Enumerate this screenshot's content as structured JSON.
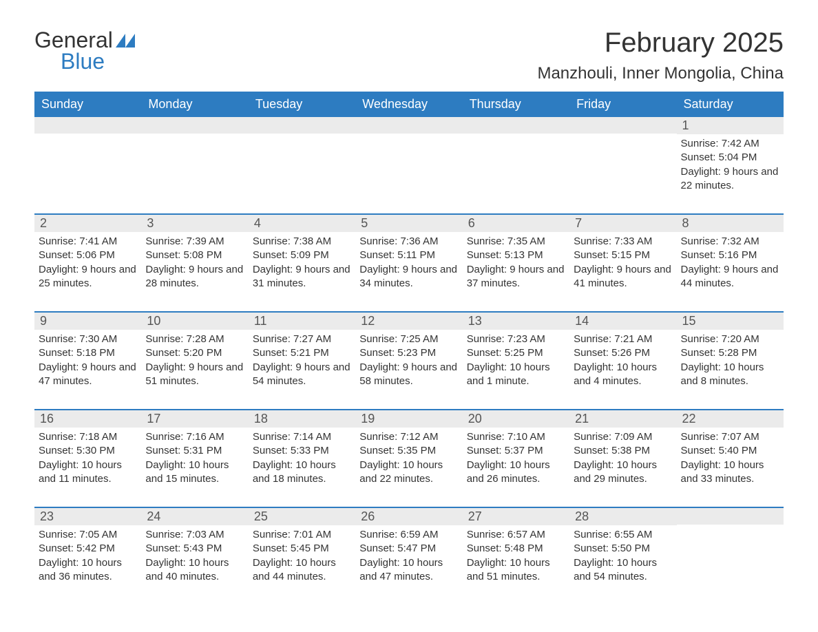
{
  "brand": {
    "text1": "General",
    "text2": "Blue",
    "color_general": "#333333",
    "color_blue": "#2d7cc1"
  },
  "title": "February 2025",
  "location": "Manzhouli, Inner Mongolia, China",
  "colors": {
    "header_bg": "#2d7cc1",
    "header_text": "#ffffff",
    "daynum_bg": "#ebebeb",
    "daynum_text": "#555555",
    "body_text": "#333333",
    "row_border": "#2d7cc1"
  },
  "day_headers": [
    "Sunday",
    "Monday",
    "Tuesday",
    "Wednesday",
    "Thursday",
    "Friday",
    "Saturday"
  ],
  "weeks": [
    [
      {
        "n": "",
        "sunrise": "",
        "sunset": "",
        "daylight": ""
      },
      {
        "n": "",
        "sunrise": "",
        "sunset": "",
        "daylight": ""
      },
      {
        "n": "",
        "sunrise": "",
        "sunset": "",
        "daylight": ""
      },
      {
        "n": "",
        "sunrise": "",
        "sunset": "",
        "daylight": ""
      },
      {
        "n": "",
        "sunrise": "",
        "sunset": "",
        "daylight": ""
      },
      {
        "n": "",
        "sunrise": "",
        "sunset": "",
        "daylight": ""
      },
      {
        "n": "1",
        "sunrise": "Sunrise: 7:42 AM",
        "sunset": "Sunset: 5:04 PM",
        "daylight": "Daylight: 9 hours and 22 minutes."
      }
    ],
    [
      {
        "n": "2",
        "sunrise": "Sunrise: 7:41 AM",
        "sunset": "Sunset: 5:06 PM",
        "daylight": "Daylight: 9 hours and 25 minutes."
      },
      {
        "n": "3",
        "sunrise": "Sunrise: 7:39 AM",
        "sunset": "Sunset: 5:08 PM",
        "daylight": "Daylight: 9 hours and 28 minutes."
      },
      {
        "n": "4",
        "sunrise": "Sunrise: 7:38 AM",
        "sunset": "Sunset: 5:09 PM",
        "daylight": "Daylight: 9 hours and 31 minutes."
      },
      {
        "n": "5",
        "sunrise": "Sunrise: 7:36 AM",
        "sunset": "Sunset: 5:11 PM",
        "daylight": "Daylight: 9 hours and 34 minutes."
      },
      {
        "n": "6",
        "sunrise": "Sunrise: 7:35 AM",
        "sunset": "Sunset: 5:13 PM",
        "daylight": "Daylight: 9 hours and 37 minutes."
      },
      {
        "n": "7",
        "sunrise": "Sunrise: 7:33 AM",
        "sunset": "Sunset: 5:15 PM",
        "daylight": "Daylight: 9 hours and 41 minutes."
      },
      {
        "n": "8",
        "sunrise": "Sunrise: 7:32 AM",
        "sunset": "Sunset: 5:16 PM",
        "daylight": "Daylight: 9 hours and 44 minutes."
      }
    ],
    [
      {
        "n": "9",
        "sunrise": "Sunrise: 7:30 AM",
        "sunset": "Sunset: 5:18 PM",
        "daylight": "Daylight: 9 hours and 47 minutes."
      },
      {
        "n": "10",
        "sunrise": "Sunrise: 7:28 AM",
        "sunset": "Sunset: 5:20 PM",
        "daylight": "Daylight: 9 hours and 51 minutes."
      },
      {
        "n": "11",
        "sunrise": "Sunrise: 7:27 AM",
        "sunset": "Sunset: 5:21 PM",
        "daylight": "Daylight: 9 hours and 54 minutes."
      },
      {
        "n": "12",
        "sunrise": "Sunrise: 7:25 AM",
        "sunset": "Sunset: 5:23 PM",
        "daylight": "Daylight: 9 hours and 58 minutes."
      },
      {
        "n": "13",
        "sunrise": "Sunrise: 7:23 AM",
        "sunset": "Sunset: 5:25 PM",
        "daylight": "Daylight: 10 hours and 1 minute."
      },
      {
        "n": "14",
        "sunrise": "Sunrise: 7:21 AM",
        "sunset": "Sunset: 5:26 PM",
        "daylight": "Daylight: 10 hours and 4 minutes."
      },
      {
        "n": "15",
        "sunrise": "Sunrise: 7:20 AM",
        "sunset": "Sunset: 5:28 PM",
        "daylight": "Daylight: 10 hours and 8 minutes."
      }
    ],
    [
      {
        "n": "16",
        "sunrise": "Sunrise: 7:18 AM",
        "sunset": "Sunset: 5:30 PM",
        "daylight": "Daylight: 10 hours and 11 minutes."
      },
      {
        "n": "17",
        "sunrise": "Sunrise: 7:16 AM",
        "sunset": "Sunset: 5:31 PM",
        "daylight": "Daylight: 10 hours and 15 minutes."
      },
      {
        "n": "18",
        "sunrise": "Sunrise: 7:14 AM",
        "sunset": "Sunset: 5:33 PM",
        "daylight": "Daylight: 10 hours and 18 minutes."
      },
      {
        "n": "19",
        "sunrise": "Sunrise: 7:12 AM",
        "sunset": "Sunset: 5:35 PM",
        "daylight": "Daylight: 10 hours and 22 minutes."
      },
      {
        "n": "20",
        "sunrise": "Sunrise: 7:10 AM",
        "sunset": "Sunset: 5:37 PM",
        "daylight": "Daylight: 10 hours and 26 minutes."
      },
      {
        "n": "21",
        "sunrise": "Sunrise: 7:09 AM",
        "sunset": "Sunset: 5:38 PM",
        "daylight": "Daylight: 10 hours and 29 minutes."
      },
      {
        "n": "22",
        "sunrise": "Sunrise: 7:07 AM",
        "sunset": "Sunset: 5:40 PM",
        "daylight": "Daylight: 10 hours and 33 minutes."
      }
    ],
    [
      {
        "n": "23",
        "sunrise": "Sunrise: 7:05 AM",
        "sunset": "Sunset: 5:42 PM",
        "daylight": "Daylight: 10 hours and 36 minutes."
      },
      {
        "n": "24",
        "sunrise": "Sunrise: 7:03 AM",
        "sunset": "Sunset: 5:43 PM",
        "daylight": "Daylight: 10 hours and 40 minutes."
      },
      {
        "n": "25",
        "sunrise": "Sunrise: 7:01 AM",
        "sunset": "Sunset: 5:45 PM",
        "daylight": "Daylight: 10 hours and 44 minutes."
      },
      {
        "n": "26",
        "sunrise": "Sunrise: 6:59 AM",
        "sunset": "Sunset: 5:47 PM",
        "daylight": "Daylight: 10 hours and 47 minutes."
      },
      {
        "n": "27",
        "sunrise": "Sunrise: 6:57 AM",
        "sunset": "Sunset: 5:48 PM",
        "daylight": "Daylight: 10 hours and 51 minutes."
      },
      {
        "n": "28",
        "sunrise": "Sunrise: 6:55 AM",
        "sunset": "Sunset: 5:50 PM",
        "daylight": "Daylight: 10 hours and 54 minutes."
      },
      {
        "n": "",
        "sunrise": "",
        "sunset": "",
        "daylight": ""
      }
    ]
  ]
}
